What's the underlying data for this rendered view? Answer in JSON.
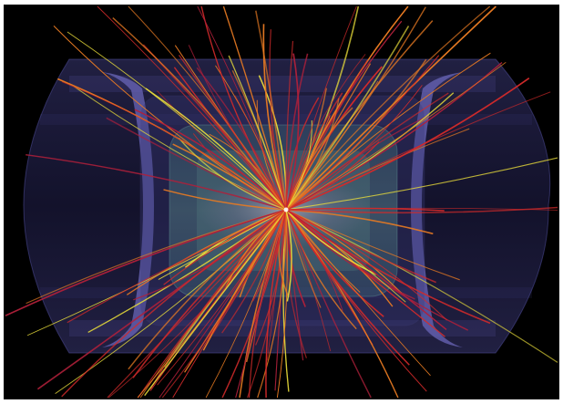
{
  "scene": {
    "subject": "particle-collision-event-display",
    "colors": {
      "background": "#000000",
      "frame": "#ffffff",
      "outer_cylinder": "#3c3a78",
      "end_cap": "#5d5aa8",
      "inner_detector": "#3f6f78",
      "core_glow": "#a8a0c0",
      "track_red": "#d22a2a",
      "track_orange": "#e87a22",
      "track_yellow": "#e8dc3a",
      "track_crimson": "#b0203a"
    },
    "tracks": {
      "count": 160,
      "seed": 7
    }
  }
}
